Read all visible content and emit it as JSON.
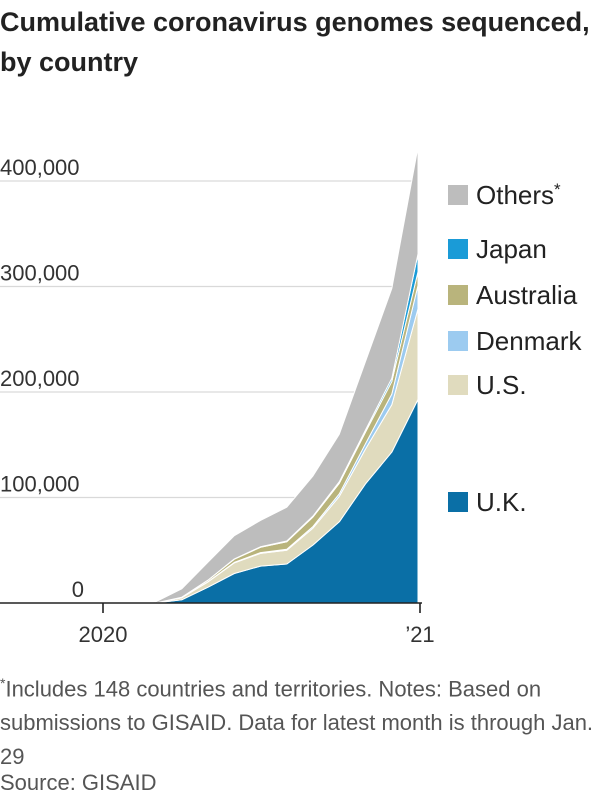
{
  "chart_data": {
    "type": "area",
    "stacked": true,
    "title": "Cumulative coronavirus genomes sequenced, by country",
    "x": [
      "2020-01",
      "2020-02",
      "2020-03",
      "2020-04",
      "2020-05",
      "2020-06",
      "2020-07",
      "2020-08",
      "2020-09",
      "2020-10",
      "2020-11",
      "2020-12",
      "2021-01"
    ],
    "x_tick_labels": [
      "2020",
      "’21"
    ],
    "y_tick_labels": [
      "0",
      "100,000",
      "200,000",
      "300,000",
      "400,000"
    ],
    "ylim": [
      0,
      430000
    ],
    "grid": true,
    "legend_position": "right",
    "series": [
      {
        "name": "U.K.",
        "color": "#0a6fa6",
        "values": [
          0,
          0,
          0,
          3000,
          15000,
          28000,
          35000,
          37000,
          55000,
          77000,
          113000,
          143000,
          193000
        ]
      },
      {
        "name": "U.S.",
        "color": "#e0dbbe",
        "values": [
          0,
          0,
          0,
          2000,
          5000,
          10000,
          12000,
          13000,
          16000,
          24000,
          33000,
          45000,
          86000
        ]
      },
      {
        "name": "Denmark",
        "color": "#9ccbf0",
        "values": [
          0,
          0,
          0,
          0,
          200,
          500,
          800,
          1000,
          1500,
          2500,
          5000,
          10000,
          22000
        ]
      },
      {
        "name": "Australia",
        "color": "#b9b47c",
        "values": [
          0,
          0,
          0,
          500,
          1500,
          3000,
          5000,
          7000,
          9000,
          10000,
          11000,
          12000,
          13000
        ]
      },
      {
        "name": "Japan",
        "color": "#1a9bd7",
        "values": [
          0,
          0,
          0,
          0,
          0,
          300,
          500,
          800,
          1000,
          1500,
          2000,
          3000,
          17000
        ]
      },
      {
        "name": "Others",
        "color": "#bdbdbd",
        "values": [
          0,
          0,
          1000,
          8000,
          17000,
          22000,
          25000,
          32000,
          38000,
          45000,
          65000,
          85000,
          101000
        ]
      }
    ],
    "legend_order": [
      "Others",
      "Japan",
      "Australia",
      "Denmark",
      "U.S.",
      "U.K."
    ],
    "legend_asterisk": "*"
  },
  "footnote": {
    "mark": "*",
    "text": "Includes 148 countries and territories. Notes: Based on submissions to GISAID. Data for latest month is through Jan. 29"
  },
  "source": "Source: GISAID"
}
